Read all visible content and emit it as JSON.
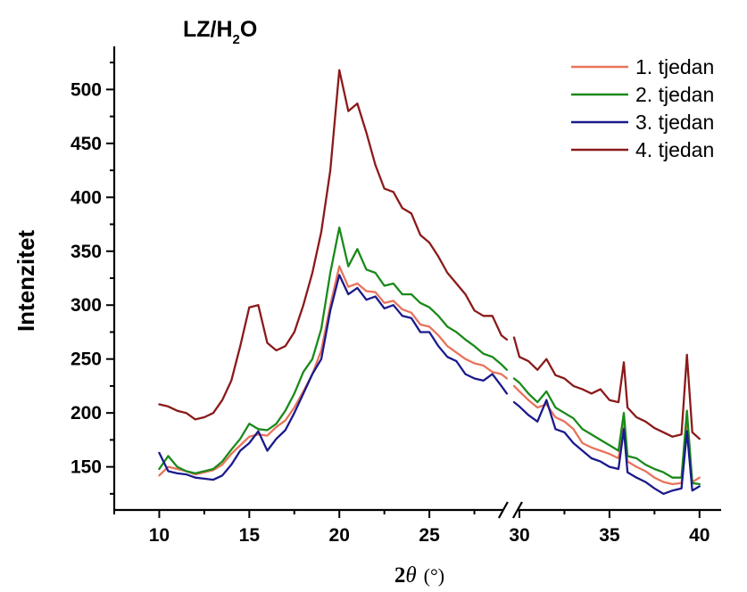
{
  "chart_data": {
    "type": "line",
    "title": "LZ/H₂O",
    "title_main": "LZ/H",
    "title_sub": "2",
    "title_end": "O",
    "ylabel": "Intenzitet",
    "xlabel_prefix": "2",
    "xlabel_symbol": "θ",
    "xlabel_unit": "(°)",
    "x_axis_break": {
      "from": 29.3,
      "to": 29.7
    },
    "xlim": [
      7.5,
      41.2
    ],
    "ylim": [
      110,
      540
    ],
    "x_ticks": [
      10,
      15,
      20,
      25,
      30,
      35,
      40
    ],
    "y_ticks": [
      150,
      200,
      250,
      300,
      350,
      400,
      450,
      500
    ],
    "legend_position": "top-right",
    "grid": false,
    "series": [
      {
        "name": "1. tjedan",
        "color": "#e8735a",
        "points": [
          [
            10,
            142
          ],
          [
            10.5,
            150
          ],
          [
            11,
            148
          ],
          [
            11.5,
            146
          ],
          [
            12,
            143
          ],
          [
            12.5,
            145
          ],
          [
            13,
            147
          ],
          [
            13.5,
            152
          ],
          [
            14,
            162
          ],
          [
            14.5,
            170
          ],
          [
            15,
            178
          ],
          [
            15.5,
            180
          ],
          [
            16,
            179
          ],
          [
            16.5,
            187
          ],
          [
            17,
            193
          ],
          [
            17.5,
            205
          ],
          [
            18,
            220
          ],
          [
            18.5,
            236
          ],
          [
            19,
            258
          ],
          [
            19.5,
            300
          ],
          [
            20,
            336
          ],
          [
            20.5,
            317
          ],
          [
            21,
            320
          ],
          [
            21.5,
            313
          ],
          [
            22,
            312
          ],
          [
            22.5,
            302
          ],
          [
            23,
            304
          ],
          [
            23.5,
            296
          ],
          [
            24,
            293
          ],
          [
            24.5,
            282
          ],
          [
            25,
            280
          ],
          [
            25.5,
            272
          ],
          [
            26,
            262
          ],
          [
            26.5,
            256
          ],
          [
            27,
            250
          ],
          [
            27.5,
            246
          ],
          [
            28,
            244
          ],
          [
            28.5,
            238
          ],
          [
            29,
            236
          ],
          [
            29.3,
            232
          ],
          [
            29.7,
            225
          ],
          [
            30,
            220
          ],
          [
            30.5,
            212
          ],
          [
            31,
            205
          ],
          [
            31.5,
            208
          ],
          [
            32,
            196
          ],
          [
            32.5,
            192
          ],
          [
            33,
            185
          ],
          [
            33.5,
            172
          ],
          [
            34,
            168
          ],
          [
            34.5,
            165
          ],
          [
            35,
            162
          ],
          [
            35.5,
            158
          ],
          [
            35.8,
            190
          ],
          [
            36,
            155
          ],
          [
            36.5,
            150
          ],
          [
            37,
            146
          ],
          [
            37.5,
            140
          ],
          [
            38,
            136
          ],
          [
            38.5,
            134
          ],
          [
            39,
            135
          ],
          [
            39.3,
            190
          ],
          [
            39.6,
            136
          ],
          [
            40,
            140
          ]
        ]
      },
      {
        "name": "2. tjedan",
        "color": "#1a8a1a",
        "points": [
          [
            10,
            148
          ],
          [
            10.5,
            160
          ],
          [
            11,
            150
          ],
          [
            11.5,
            146
          ],
          [
            12,
            144
          ],
          [
            12.5,
            146
          ],
          [
            13,
            148
          ],
          [
            13.5,
            155
          ],
          [
            14,
            166
          ],
          [
            14.5,
            176
          ],
          [
            15,
            190
          ],
          [
            15.5,
            185
          ],
          [
            16,
            184
          ],
          [
            16.5,
            190
          ],
          [
            17,
            202
          ],
          [
            17.5,
            218
          ],
          [
            18,
            238
          ],
          [
            18.5,
            250
          ],
          [
            19,
            278
          ],
          [
            19.5,
            330
          ],
          [
            20,
            372
          ],
          [
            20.5,
            336
          ],
          [
            21,
            352
          ],
          [
            21.5,
            333
          ],
          [
            22,
            330
          ],
          [
            22.5,
            318
          ],
          [
            23,
            320
          ],
          [
            23.5,
            310
          ],
          [
            24,
            310
          ],
          [
            24.5,
            302
          ],
          [
            25,
            298
          ],
          [
            25.5,
            290
          ],
          [
            26,
            280
          ],
          [
            26.5,
            275
          ],
          [
            27,
            268
          ],
          [
            27.5,
            262
          ],
          [
            28,
            255
          ],
          [
            28.5,
            252
          ],
          [
            29,
            245
          ],
          [
            29.3,
            240
          ],
          [
            29.7,
            232
          ],
          [
            30,
            228
          ],
          [
            30.5,
            218
          ],
          [
            31,
            210
          ],
          [
            31.5,
            220
          ],
          [
            32,
            205
          ],
          [
            32.5,
            200
          ],
          [
            33,
            195
          ],
          [
            33.5,
            185
          ],
          [
            34,
            180
          ],
          [
            34.5,
            175
          ],
          [
            35,
            170
          ],
          [
            35.5,
            165
          ],
          [
            35.8,
            200
          ],
          [
            36,
            160
          ],
          [
            36.5,
            158
          ],
          [
            37,
            152
          ],
          [
            37.5,
            148
          ],
          [
            38,
            145
          ],
          [
            38.5,
            140
          ],
          [
            39,
            140
          ],
          [
            39.3,
            202
          ],
          [
            39.6,
            135
          ],
          [
            40,
            134
          ]
        ]
      },
      {
        "name": "3. tjedan",
        "color": "#1a1a8c",
        "points": [
          [
            10,
            163
          ],
          [
            10.5,
            146
          ],
          [
            11,
            144
          ],
          [
            11.5,
            143
          ],
          [
            12,
            140
          ],
          [
            12.5,
            139
          ],
          [
            13,
            138
          ],
          [
            13.5,
            142
          ],
          [
            14,
            152
          ],
          [
            14.5,
            165
          ],
          [
            15,
            172
          ],
          [
            15.5,
            183
          ],
          [
            16,
            165
          ],
          [
            16.5,
            176
          ],
          [
            17,
            184
          ],
          [
            17.5,
            200
          ],
          [
            18,
            218
          ],
          [
            18.5,
            236
          ],
          [
            19,
            250
          ],
          [
            19.5,
            295
          ],
          [
            20,
            328
          ],
          [
            20.5,
            310
          ],
          [
            21,
            316
          ],
          [
            21.5,
            305
          ],
          [
            22,
            308
          ],
          [
            22.5,
            297
          ],
          [
            23,
            300
          ],
          [
            23.5,
            290
          ],
          [
            24,
            288
          ],
          [
            24.5,
            275
          ],
          [
            25,
            275
          ],
          [
            25.5,
            262
          ],
          [
            26,
            252
          ],
          [
            26.5,
            248
          ],
          [
            27,
            236
          ],
          [
            27.5,
            232
          ],
          [
            28,
            230
          ],
          [
            28.5,
            236
          ],
          [
            29,
            225
          ],
          [
            29.3,
            218
          ],
          [
            29.7,
            210
          ],
          [
            30,
            206
          ],
          [
            30.5,
            198
          ],
          [
            31,
            192
          ],
          [
            31.5,
            212
          ],
          [
            32,
            185
          ],
          [
            32.5,
            182
          ],
          [
            33,
            172
          ],
          [
            33.5,
            165
          ],
          [
            34,
            158
          ],
          [
            34.5,
            155
          ],
          [
            35,
            150
          ],
          [
            35.5,
            148
          ],
          [
            35.8,
            185
          ],
          [
            36,
            145
          ],
          [
            36.5,
            140
          ],
          [
            37,
            136
          ],
          [
            37.5,
            130
          ],
          [
            38,
            125
          ],
          [
            38.5,
            128
          ],
          [
            39,
            130
          ],
          [
            39.3,
            183
          ],
          [
            39.6,
            128
          ],
          [
            40,
            132
          ]
        ]
      },
      {
        "name": "4. tjedan",
        "color": "#8b1a1a",
        "points": [
          [
            10,
            208
          ],
          [
            10.5,
            206
          ],
          [
            11,
            202
          ],
          [
            11.5,
            200
          ],
          [
            12,
            194
          ],
          [
            12.5,
            196
          ],
          [
            13,
            200
          ],
          [
            13.5,
            212
          ],
          [
            14,
            230
          ],
          [
            14.5,
            262
          ],
          [
            15,
            298
          ],
          [
            15.5,
            300
          ],
          [
            16,
            265
          ],
          [
            16.5,
            258
          ],
          [
            17,
            262
          ],
          [
            17.5,
            275
          ],
          [
            18,
            300
          ],
          [
            18.5,
            330
          ],
          [
            19,
            368
          ],
          [
            19.5,
            425
          ],
          [
            20,
            518
          ],
          [
            20.5,
            480
          ],
          [
            21,
            487
          ],
          [
            21.5,
            460
          ],
          [
            22,
            430
          ],
          [
            22.5,
            408
          ],
          [
            23,
            405
          ],
          [
            23.5,
            390
          ],
          [
            24,
            385
          ],
          [
            24.5,
            365
          ],
          [
            25,
            358
          ],
          [
            25.5,
            345
          ],
          [
            26,
            330
          ],
          [
            26.5,
            320
          ],
          [
            27,
            310
          ],
          [
            27.5,
            295
          ],
          [
            28,
            290
          ],
          [
            28.5,
            290
          ],
          [
            29,
            272
          ],
          [
            29.3,
            268
          ],
          [
            29.7,
            270
          ],
          [
            30,
            252
          ],
          [
            30.5,
            248
          ],
          [
            31,
            240
          ],
          [
            31.5,
            250
          ],
          [
            32,
            235
          ],
          [
            32.5,
            232
          ],
          [
            33,
            225
          ],
          [
            33.5,
            222
          ],
          [
            34,
            218
          ],
          [
            34.5,
            222
          ],
          [
            35,
            212
          ],
          [
            35.5,
            210
          ],
          [
            35.8,
            247
          ],
          [
            36,
            205
          ],
          [
            36.5,
            196
          ],
          [
            37,
            192
          ],
          [
            37.5,
            186
          ],
          [
            38,
            182
          ],
          [
            38.5,
            178
          ],
          [
            39,
            180
          ],
          [
            39.3,
            254
          ],
          [
            39.6,
            182
          ],
          [
            40,
            176
          ]
        ]
      }
    ]
  }
}
